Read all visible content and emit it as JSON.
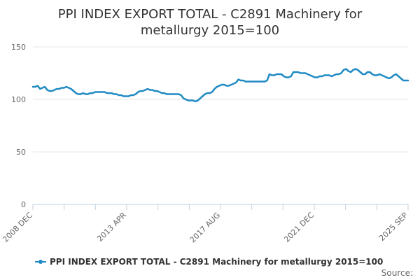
{
  "chart_data": {
    "type": "line",
    "title_lines": [
      "PPI INDEX EXPORT TOTAL - C2891 Machinery for",
      "metallurgy 2015=100"
    ],
    "title": "PPI INDEX EXPORT TOTAL - C2891 Machinery for metallurgy 2015=100",
    "xlabel": "",
    "ylabel": "",
    "ylim": [
      0,
      150
    ],
    "yticks": [
      0,
      50,
      100,
      150
    ],
    "xtick_labels": [
      "2008 DEC",
      "2013 APR",
      "2017 AUG",
      "2021 DEC",
      "2025 SEP"
    ],
    "grid": true,
    "legend_position": "bottom",
    "series": [
      {
        "name": "PPI INDEX EXPORT TOTAL - C2891 Machinery for metallurgy 2015=100",
        "color": "#1f8ac4",
        "values": [
          112,
          112,
          113,
          110,
          111,
          112,
          109,
          108,
          108,
          109,
          110,
          110,
          111,
          111,
          112,
          111,
          110,
          108,
          106,
          105,
          105,
          106,
          105,
          105,
          106,
          106,
          107,
          107,
          107,
          107,
          107,
          106,
          106,
          106,
          105,
          105,
          104,
          104,
          103,
          103,
          103,
          104,
          104,
          105,
          107,
          108,
          108,
          109,
          110,
          109,
          109,
          108,
          108,
          107,
          106,
          106,
          105,
          105,
          105,
          105,
          105,
          105,
          104,
          101,
          100,
          99,
          99,
          99,
          98,
          99,
          101,
          103,
          105,
          106,
          106,
          107,
          110,
          112,
          113,
          114,
          114,
          113,
          113,
          114,
          115,
          116,
          119,
          118,
          118,
          117,
          117,
          117,
          117,
          117,
          117,
          117,
          117,
          117,
          118,
          124,
          123,
          123,
          124,
          124,
          124,
          122,
          121,
          121,
          122,
          126,
          126,
          126,
          125,
          125,
          125,
          124,
          123,
          122,
          121,
          121,
          122,
          122,
          123,
          123,
          123,
          122,
          123,
          124,
          124,
          125,
          128,
          129,
          127,
          126,
          128,
          129,
          128,
          126,
          124,
          124,
          126,
          126,
          124,
          123,
          123,
          124,
          123,
          122,
          121,
          120,
          121,
          123,
          124,
          122,
          120,
          118,
          118,
          118
        ]
      }
    ]
  },
  "legend": {
    "label": "PPI INDEX EXPORT TOTAL - C2891 Machinery for metallurgy 2015=100"
  },
  "source": {
    "label": "Source:"
  },
  "colors": {
    "series": "#1f8ac4",
    "grid": "#e6e6e6",
    "axis": "#c0d0e0",
    "text": "#333333"
  }
}
